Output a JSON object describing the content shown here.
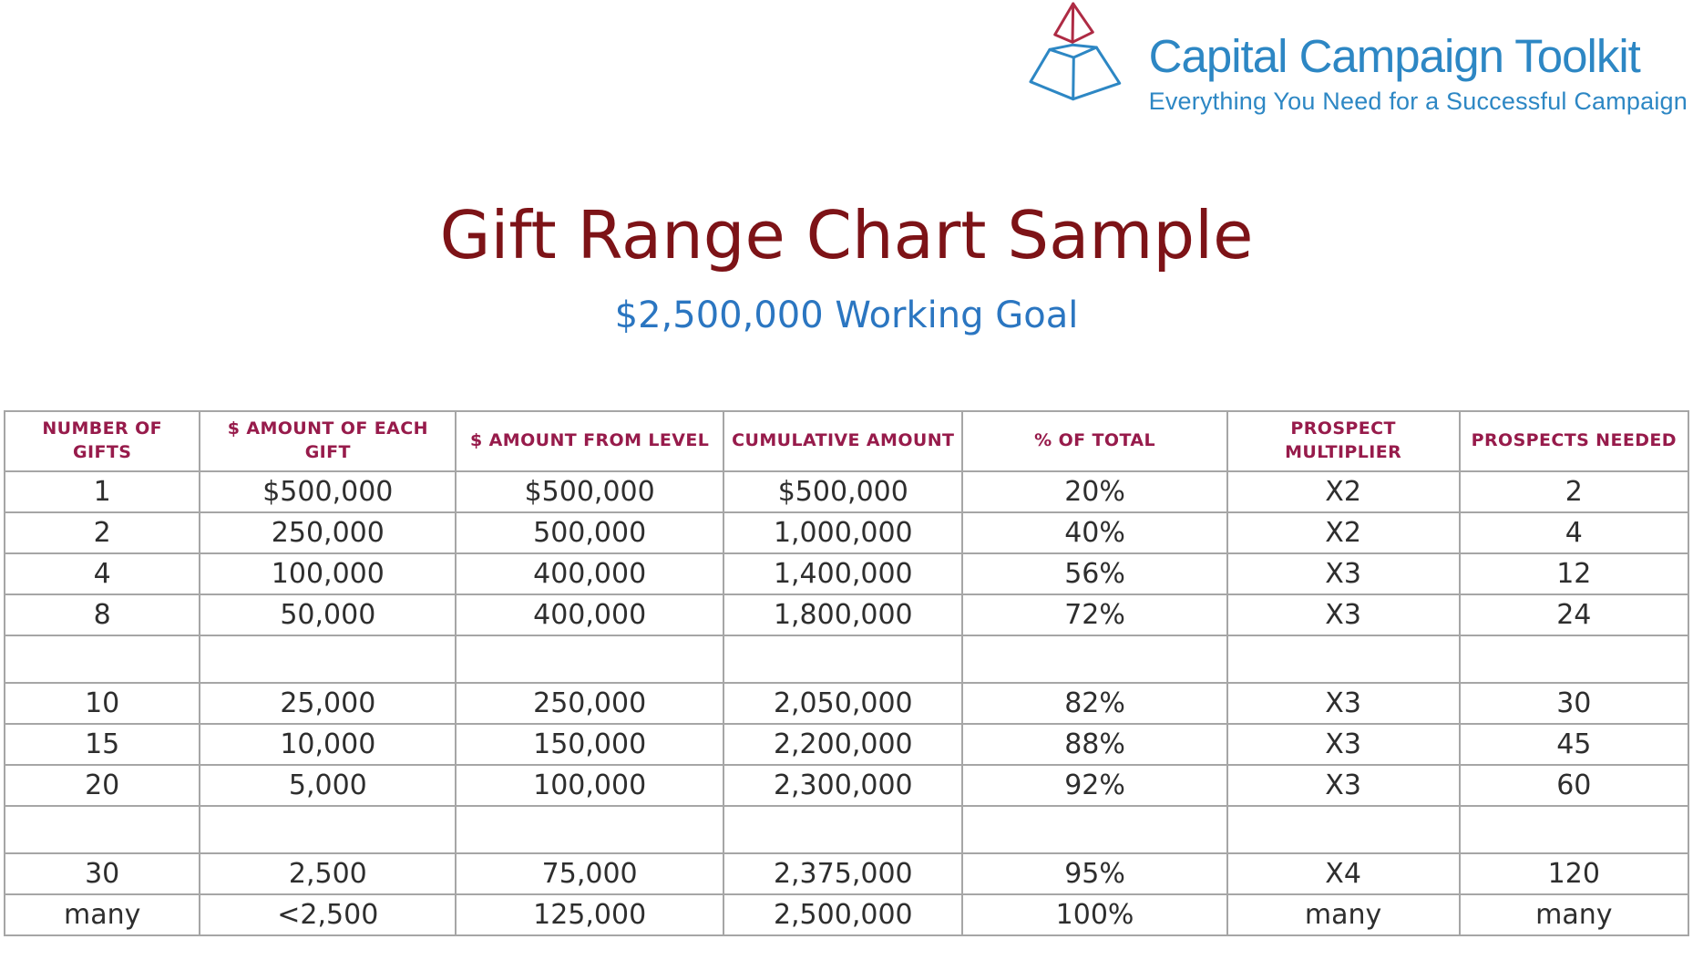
{
  "logo": {
    "brand": "Capital Campaign Toolkit",
    "tagline": "Everything You Need for a Successful Campaign",
    "icon": "pyramid-icon",
    "brand_color": "#2d87c4",
    "icon_blue": "#2d87c4",
    "icon_red": "#ae2b44"
  },
  "header": {
    "title": "Gift Range Chart Sample",
    "subtitle": "$2,500,000 Working Goal",
    "title_color": "#7d1317",
    "subtitle_color": "#2b76c1"
  },
  "table": {
    "border_color": "#a6a6a6",
    "header_text_color": "#971b4b",
    "cell_text_color": "#2e2e2e",
    "columns": [
      "NUMBER OF GIFTS",
      "$ AMOUNT OF EACH GIFT",
      "$ AMOUNT FROM LEVEL",
      "CUMULATIVE AMOUNT",
      "% OF TOTAL",
      "PROSPECT MULTIPLIER",
      "PROSPECTS NEEDED"
    ],
    "rows": [
      [
        "1",
        "$500,000",
        "$500,000",
        "$500,000",
        "20%",
        "X2",
        "2"
      ],
      [
        "2",
        "250,000",
        "500,000",
        "1,000,000",
        "40%",
        "X2",
        "4"
      ],
      [
        "4",
        "100,000",
        "400,000",
        "1,400,000",
        "56%",
        "X3",
        "12"
      ],
      [
        "8",
        "50,000",
        "400,000",
        "1,800,000",
        "72%",
        "X3",
        "24"
      ],
      [
        "",
        "",
        "",
        "",
        "",
        "",
        ""
      ],
      [
        "10",
        "25,000",
        "250,000",
        "2,050,000",
        "82%",
        "X3",
        "30"
      ],
      [
        "15",
        "10,000",
        "150,000",
        "2,200,000",
        "88%",
        "X3",
        "45"
      ],
      [
        "20",
        "5,000",
        "100,000",
        "2,300,000",
        "92%",
        "X3",
        "60"
      ],
      [
        "",
        "",
        "",
        "",
        "",
        "",
        ""
      ],
      [
        "30",
        "2,500",
        "75,000",
        "2,375,000",
        "95%",
        "X4",
        "120"
      ],
      [
        "many",
        "<2,500",
        "125,000",
        "2,500,000",
        "100%",
        "many",
        "many"
      ]
    ]
  }
}
